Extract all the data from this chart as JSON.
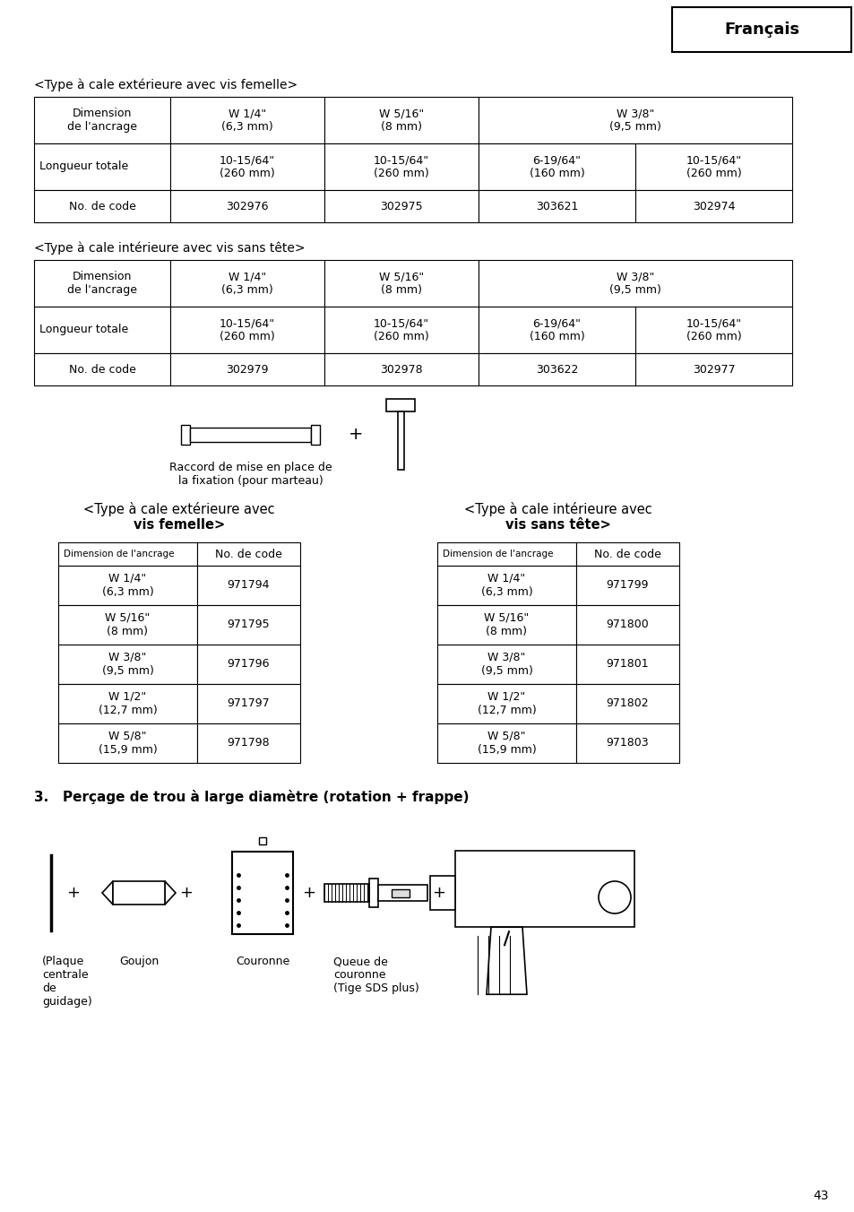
{
  "page_num": "43",
  "header_text": "Français",
  "bg_color": "#ffffff",
  "table1_title": "<Type à cale extérieure avec vis femelle>",
  "table2_title": "<Type à cale intérieure avec vis sans tête>",
  "caption_raccord": "Raccord de mise en place de\nla fixation (pour marteau)",
  "table3_title_line1": "<Type à cale extérieure avec",
  "table3_title_line2": "vis femelle>",
  "table3_col1_header": "Dimension de l'ancrage",
  "table3_col2_header": "No. de code",
  "table3_rows": [
    [
      "W 1/4\"\n(6,3 mm)",
      "971794"
    ],
    [
      "W 5/16\"\n(8 mm)",
      "971795"
    ],
    [
      "W 3/8\"\n(9,5 mm)",
      "971796"
    ],
    [
      "W 1/2\"\n(12,7 mm)",
      "971797"
    ],
    [
      "W 5/8\"\n(15,9 mm)",
      "971798"
    ]
  ],
  "table4_title_line1": "<Type à cale intérieure avec",
  "table4_title_line2": "vis sans tête>",
  "table4_col1_header": "Dimension de l'ancrage",
  "table4_col2_header": "No. de code",
  "table4_rows": [
    [
      "W 1/4\"\n(6,3 mm)",
      "971799"
    ],
    [
      "W 5/16\"\n(8 mm)",
      "971800"
    ],
    [
      "W 3/8\"\n(9,5 mm)",
      "971801"
    ],
    [
      "W 1/2\"\n(12,7 mm)",
      "971802"
    ],
    [
      "W 5/8\"\n(15,9 mm)",
      "971803"
    ]
  ],
  "section3_title": "3.   Perçage de trou à large diamètre (rotation + frappe)",
  "label_plaque": "(Plaque\ncentrale\nde\nguidage)",
  "label_goujon": "Goujon",
  "label_couronne": "Couronne",
  "label_queue": "Queue de\ncouronne\n(Tige SDS plus)"
}
